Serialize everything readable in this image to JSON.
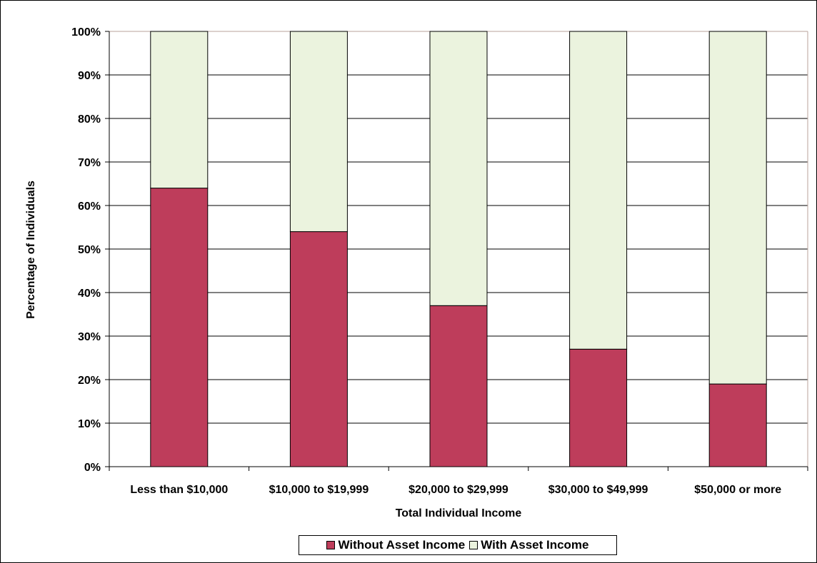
{
  "chart_data": {
    "type": "bar",
    "stacked": true,
    "title": "",
    "xlabel": "Total Individual Income",
    "ylabel": "Percentage of Individuals",
    "ylim": [
      0,
      100
    ],
    "y_ticks": [
      "0%",
      "10%",
      "20%",
      "30%",
      "40%",
      "50%",
      "60%",
      "70%",
      "80%",
      "90%",
      "100%"
    ],
    "categories": [
      "Less than $10,000",
      "$10,000 to $19,999",
      "$20,000 to $29,999",
      "$30,000 to $49,999",
      "$50,000 or more"
    ],
    "series": [
      {
        "name": "Without Asset Income",
        "values": [
          64,
          54,
          37,
          27,
          19
        ],
        "color": "#be3d5b"
      },
      {
        "name": "With Asset Income",
        "values": [
          36,
          46,
          63,
          73,
          81
        ],
        "color": "#ebf3de"
      }
    ],
    "grid": true,
    "legend": "bottom-center"
  }
}
